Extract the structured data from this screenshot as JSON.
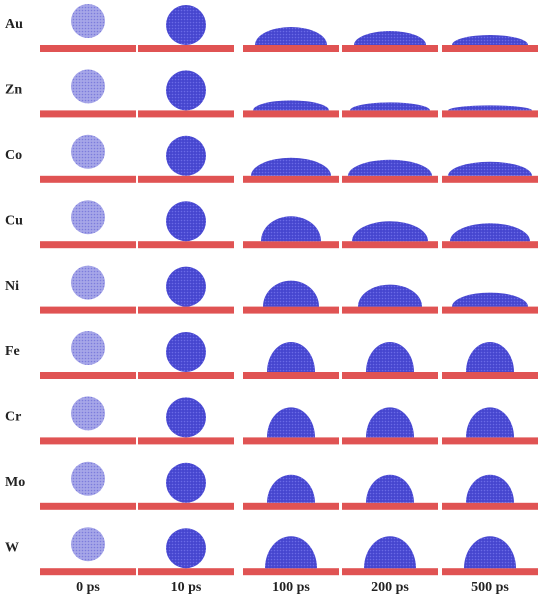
{
  "rows": [
    "Au",
    "Zn",
    "Co",
    "Cu",
    "Ni",
    "Fe",
    "Cr",
    "Mo",
    "W"
  ],
  "columns": [
    "0 ps",
    "10 ps",
    "100 ps",
    "200 ps",
    "500 ps"
  ]
}
